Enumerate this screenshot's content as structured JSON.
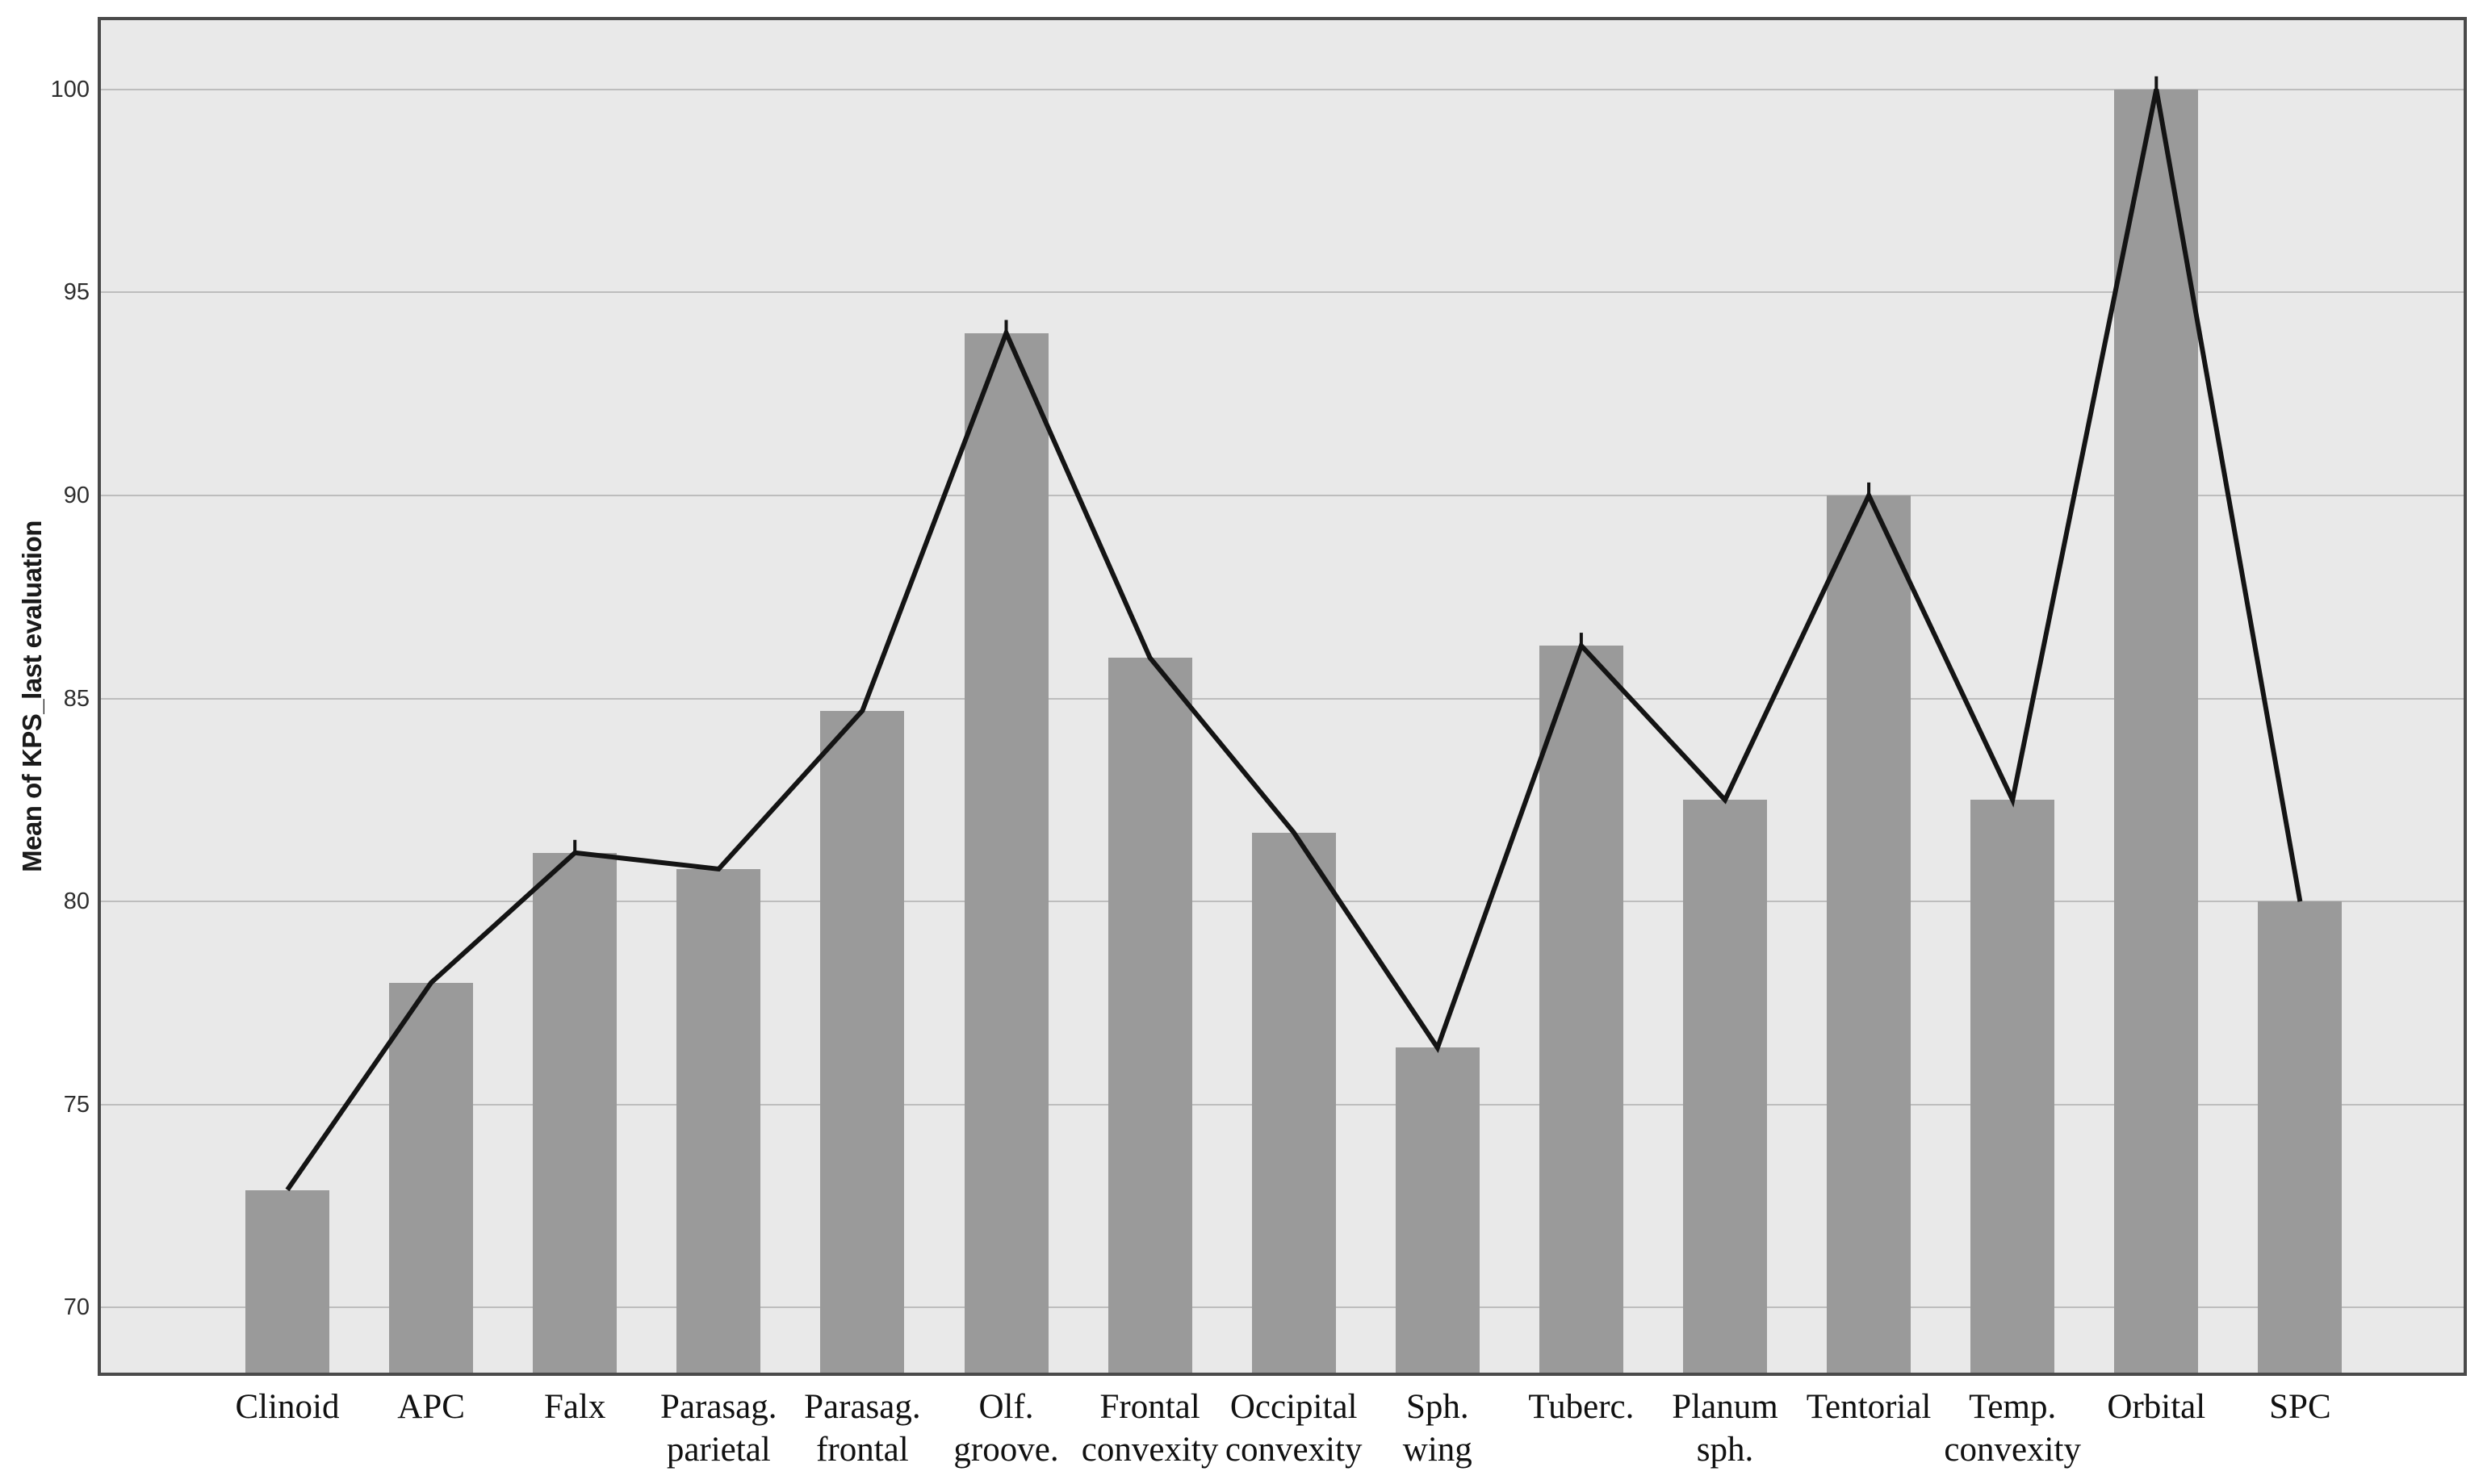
{
  "chart_data": {
    "type": "bar",
    "subtype": "bars-with-line-overlay-connecting-bar-tops",
    "title": "",
    "xlabel": "",
    "ylabel": "Mean of KPS_last evaluation",
    "categories": [
      "Clinoid",
      "APC",
      "Falx",
      "Parasag. parietal",
      "Parasag. frontal",
      "Olf. groove.",
      "Frontal convexity",
      "Occipital convexity",
      "Sph. wing",
      "Tuberc.",
      "Planum sph.",
      "Tentorial",
      "Temp. convexity",
      "Orbital",
      "SPC"
    ],
    "category_label_lines": [
      [
        "Clinoid"
      ],
      [
        "APC"
      ],
      [
        "Falx"
      ],
      [
        "Parasag.",
        "parietal"
      ],
      [
        "Parasag.",
        "frontal"
      ],
      [
        "Olf.",
        "groove."
      ],
      [
        "Frontal",
        "convexity"
      ],
      [
        "Occipital",
        "convexity"
      ],
      [
        "Sph.",
        "wing"
      ],
      [
        "Tuberc."
      ],
      [
        "Planum",
        "sph."
      ],
      [
        "Tentorial"
      ],
      [
        "Temp.",
        "convexity"
      ],
      [
        "Orbital"
      ],
      [
        "SPC"
      ]
    ],
    "values": [
      72.9,
      78.0,
      81.2,
      80.8,
      84.7,
      94.0,
      86.0,
      81.7,
      76.4,
      86.3,
      82.5,
      90.0,
      82.5,
      100.0,
      80.0
    ],
    "y_ticks": [
      70,
      75,
      80,
      85,
      90,
      95,
      100
    ],
    "ylim": [
      68.4,
      101.7
    ],
    "grid": true,
    "legend": "none"
  },
  "style": {
    "figure_bg": "#ffffff",
    "plot_bg": "#e9e9e9",
    "bar_color": "#9a9a9a",
    "line_color": "#141414",
    "grid_color": "#bdbdbd",
    "frame_color": "#4a4a4a",
    "y_tick_color": "#2e2e2e",
    "x_label_color": "#111111"
  }
}
